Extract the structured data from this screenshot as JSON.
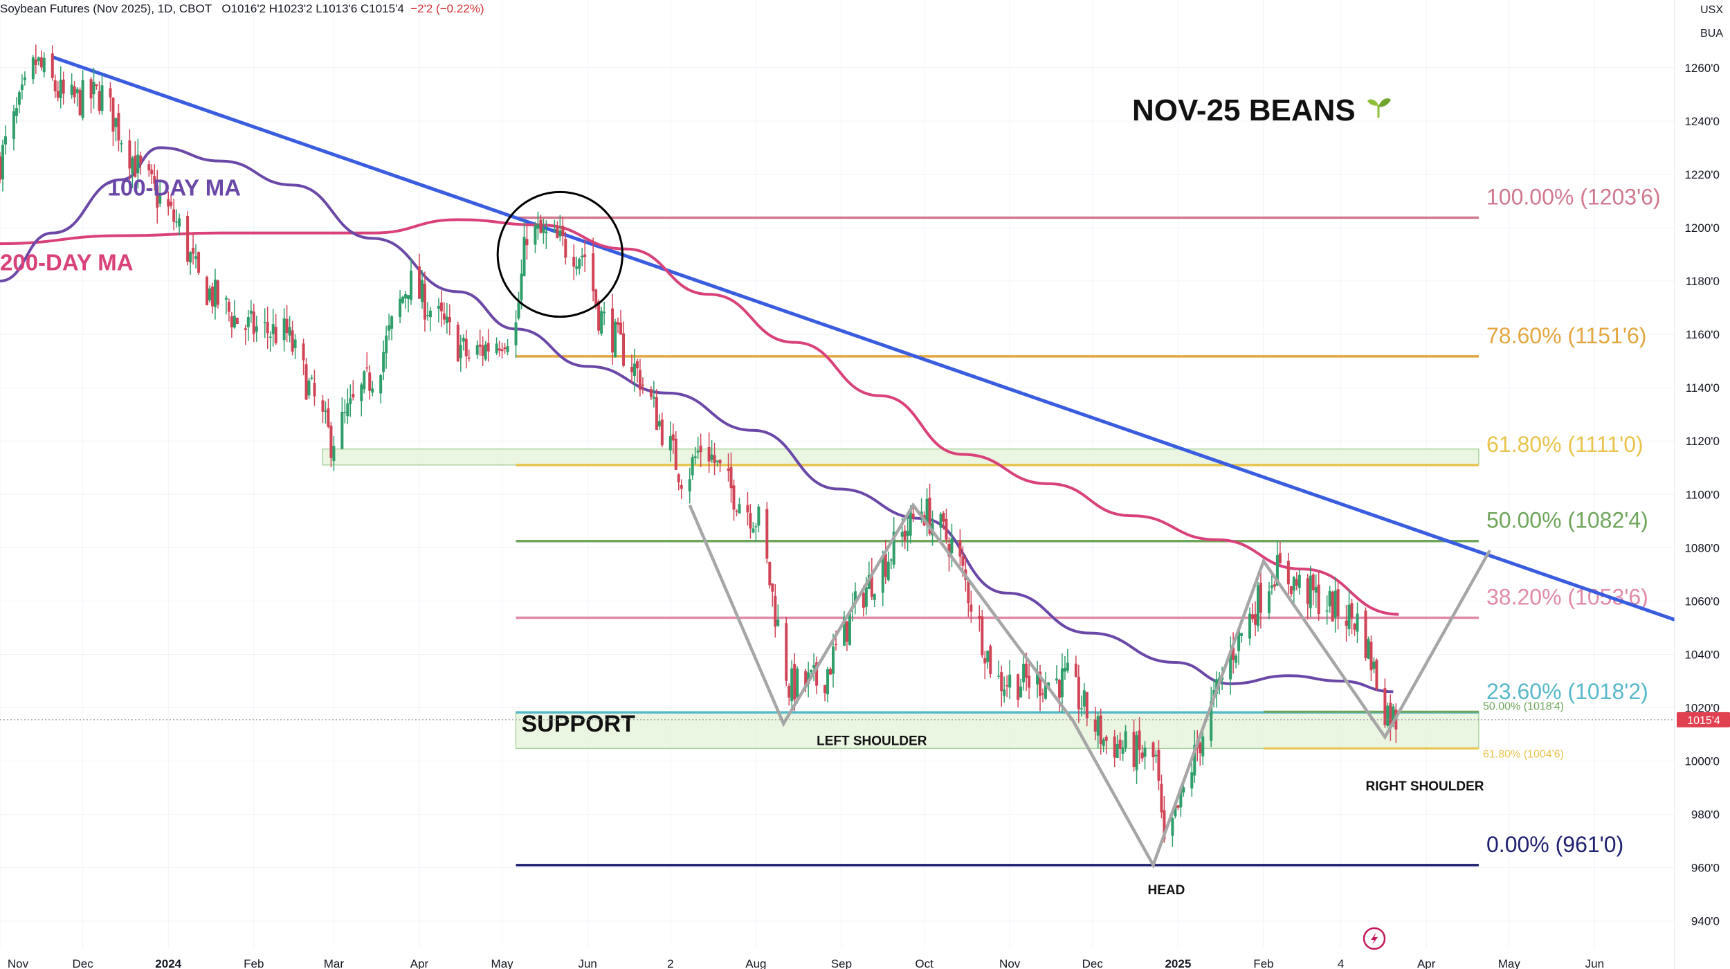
{
  "header": {
    "symbol_line": "Soybean Futures (Nov 2025), 1D, CBOT",
    "ohlc": "O1016'2  H1023'2  L1013'6  C1015'4",
    "change": "−2'2 (−0.22%)",
    "currency": "USX",
    "unit": "BUA"
  },
  "colors": {
    "up_candle": "#2e9e6a",
    "down_candle": "#d04456",
    "trendline": "#3a5de0",
    "ma100": "#6b48a8",
    "ma200": "#d9417a",
    "zigzag": "#a6a6a6",
    "fib_100": "#d0788e",
    "fib_786": "#e3a640",
    "fib_618": "#e8c44d",
    "fib_50": "#6fa55a",
    "fib_382": "#e08aa8",
    "fib_236": "#56b8c9",
    "fib_0": "#1f2170",
    "support_fill": "#e8f4df",
    "support_stroke": "#7dbd6a",
    "price_tag": "#e04050"
  },
  "chart_data": {
    "type": "candlestick",
    "title": "NOV-25 BEANS",
    "title_icon": "seedling-icon",
    "x_ticks": [
      "Nov",
      "Dec",
      "2024",
      "Feb",
      "Mar",
      "Apr",
      "May",
      "Jun",
      "2",
      "Aug",
      "Sep",
      "Oct",
      "Nov",
      "Dec",
      "2025",
      "Feb",
      "4",
      "Apr",
      "May",
      "Jun"
    ],
    "x_range": [
      "2023-11-01",
      "2025-06-30"
    ],
    "y_ticks": [
      "1260'0",
      "1240'0",
      "1220'0",
      "1200'0",
      "1180'0",
      "1160'0",
      "1140'0",
      "1120'0",
      "1100'0",
      "1080'0",
      "1060'0",
      "1040'0",
      "1020'0",
      "1000'0",
      "980'0",
      "960'0",
      "940'0"
    ],
    "y_range": [
      935,
      1275
    ],
    "last_price": 1015.5,
    "last_price_label": "1015'4",
    "fib_levels": [
      {
        "key": "fib_100",
        "value": 1203.75,
        "label": "100.00% (1203'6)"
      },
      {
        "key": "fib_786",
        "value": 1151.75,
        "label": "78.60% (1151'6)"
      },
      {
        "key": "fib_618",
        "value": 1111.0,
        "label": "61.80% (1111'0)"
      },
      {
        "key": "fib_50",
        "value": 1082.5,
        "label": "50.00% (1082'4)"
      },
      {
        "key": "fib_382",
        "value": 1053.75,
        "label": "38.20% (1053'6)"
      },
      {
        "key": "fib_236",
        "value": 1018.25,
        "label": "23.60% (1018'2)"
      },
      {
        "key": "fib_0",
        "value": 961.0,
        "label": "0.00% (961'0)"
      }
    ],
    "small_fibs": [
      {
        "key": "fib_50",
        "value": 1018.5,
        "label": "50.00% (1018'4)"
      },
      {
        "key": "fib_618",
        "value": 1004.75,
        "label": "61.80% (1004'6)"
      }
    ],
    "zones": [
      {
        "name": "upper-zone",
        "x0": "2024-02-26",
        "x1": "2025-04-20",
        "y0": 1111,
        "y1": 1117
      },
      {
        "name": "support-zone",
        "x0": "2024-05-06",
        "x1": "2025-04-20",
        "y0": 1004.75,
        "y1": 1018.5
      }
    ],
    "trendline": {
      "start": [
        "2023-11-20",
        1264
      ],
      "end": [
        "2025-06-30",
        1053
      ]
    },
    "zigzag": [
      [
        "2024-07-08",
        1096
      ],
      [
        "2024-08-11",
        1014
      ],
      [
        "2024-09-27",
        1096
      ],
      [
        "2024-11-24",
        1015
      ],
      [
        "2024-12-23",
        961
      ],
      [
        "2025-02-01",
        1075
      ],
      [
        "2025-03-17",
        1009
      ],
      [
        "2025-04-24",
        1079
      ]
    ],
    "ma100": [
      [
        "2023-11-01",
        1180
      ],
      [
        "2023-11-20",
        1198
      ],
      [
        "2023-12-15",
        1218
      ],
      [
        "2023-12-29",
        1230
      ],
      [
        "2024-01-20",
        1225
      ],
      [
        "2024-02-15",
        1216
      ],
      [
        "2024-03-15",
        1196
      ],
      [
        "2024-04-15",
        1176
      ],
      [
        "2024-05-06",
        1162
      ],
      [
        "2024-06-01",
        1148
      ],
      [
        "2024-06-30",
        1138
      ],
      [
        "2024-07-31",
        1124
      ],
      [
        "2024-08-31",
        1102
      ],
      [
        "2024-09-30",
        1091
      ],
      [
        "2024-10-31",
        1063
      ],
      [
        "2024-11-30",
        1048
      ],
      [
        "2024-12-31",
        1037
      ],
      [
        "2025-01-20",
        1029
      ],
      [
        "2025-02-10",
        1032
      ],
      [
        "2025-03-01",
        1030
      ],
      [
        "2025-03-20",
        1026
      ]
    ],
    "ma200": [
      [
        "2023-11-01",
        1194
      ],
      [
        "2023-12-15",
        1197
      ],
      [
        "2024-01-20",
        1198
      ],
      [
        "2024-03-15",
        1198
      ],
      [
        "2024-04-15",
        1203
      ],
      [
        "2024-05-15",
        1201
      ],
      [
        "2024-06-15",
        1192
      ],
      [
        "2024-07-15",
        1175
      ],
      [
        "2024-08-15",
        1157
      ],
      [
        "2024-09-15",
        1137
      ],
      [
        "2024-10-15",
        1115
      ],
      [
        "2024-11-15",
        1104
      ],
      [
        "2024-12-15",
        1092
      ],
      [
        "2025-01-15",
        1083
      ],
      [
        "2025-02-15",
        1072
      ],
      [
        "2025-03-22",
        1055
      ]
    ],
    "price_path": [
      [
        "2023-11-01",
        1225
      ],
      [
        "2023-11-14",
        1262
      ],
      [
        "2023-11-25",
        1247
      ],
      [
        "2023-12-08",
        1250
      ],
      [
        "2023-12-21",
        1222
      ],
      [
        "2024-01-05",
        1200
      ],
      [
        "2024-01-12",
        1180
      ],
      [
        "2024-01-28",
        1163
      ],
      [
        "2024-02-13",
        1160
      ],
      [
        "2024-02-29",
        1120
      ],
      [
        "2024-03-17",
        1148
      ],
      [
        "2024-03-28",
        1180
      ],
      [
        "2024-04-19",
        1151
      ],
      [
        "2024-05-06",
        1163
      ],
      [
        "2024-05-10",
        1199
      ],
      [
        "2024-05-31",
        1190
      ],
      [
        "2024-06-05",
        1168
      ],
      [
        "2024-06-20",
        1144
      ],
      [
        "2024-07-06",
        1105
      ],
      [
        "2024-07-13",
        1120
      ],
      [
        "2024-07-21",
        1104
      ],
      [
        "2024-08-02",
        1090
      ],
      [
        "2024-08-13",
        1028
      ],
      [
        "2024-08-25",
        1030
      ],
      [
        "2024-09-08",
        1062
      ],
      [
        "2024-09-30",
        1095
      ],
      [
        "2024-10-12",
        1080
      ],
      [
        "2024-10-27",
        1030
      ],
      [
        "2024-11-08",
        1030
      ],
      [
        "2024-11-22",
        1030
      ],
      [
        "2024-12-05",
        1008
      ],
      [
        "2024-12-24",
        1000
      ],
      [
        "2024-12-27",
        965
      ],
      [
        "2025-01-08",
        1005
      ],
      [
        "2025-01-20",
        1040
      ],
      [
        "2025-02-05",
        1072
      ],
      [
        "2025-02-22",
        1060
      ],
      [
        "2025-03-08",
        1052
      ],
      [
        "2025-03-17",
        1020
      ],
      [
        "2025-03-22",
        1015
      ]
    ],
    "annotations": [
      {
        "key": "ma100_label",
        "text": "100-DAY MA",
        "x": "2023-12-10",
        "y": 1212,
        "color": "ma100"
      },
      {
        "key": "ma200_label",
        "text": "200-DAY MA",
        "x": "2023-11-01",
        "y": 1184,
        "color": "ma200"
      },
      {
        "key": "support_label",
        "text": "SUPPORT",
        "x": "2024-05-08",
        "y": 1011
      },
      {
        "key": "left_shoulder_label",
        "text": "LEFT SHOULDER",
        "x": "2024-08-23",
        "y": 1006
      },
      {
        "key": "head_label",
        "text": "HEAD",
        "x": "2024-12-21",
        "y": 950
      },
      {
        "key": "right_shoulder_label",
        "text": "RIGHT SHOULDER",
        "x": "2025-03-10",
        "y": 989
      }
    ],
    "circle": {
      "center": [
        "2024-05-22",
        1190
      ],
      "radius_value": 20
    }
  }
}
